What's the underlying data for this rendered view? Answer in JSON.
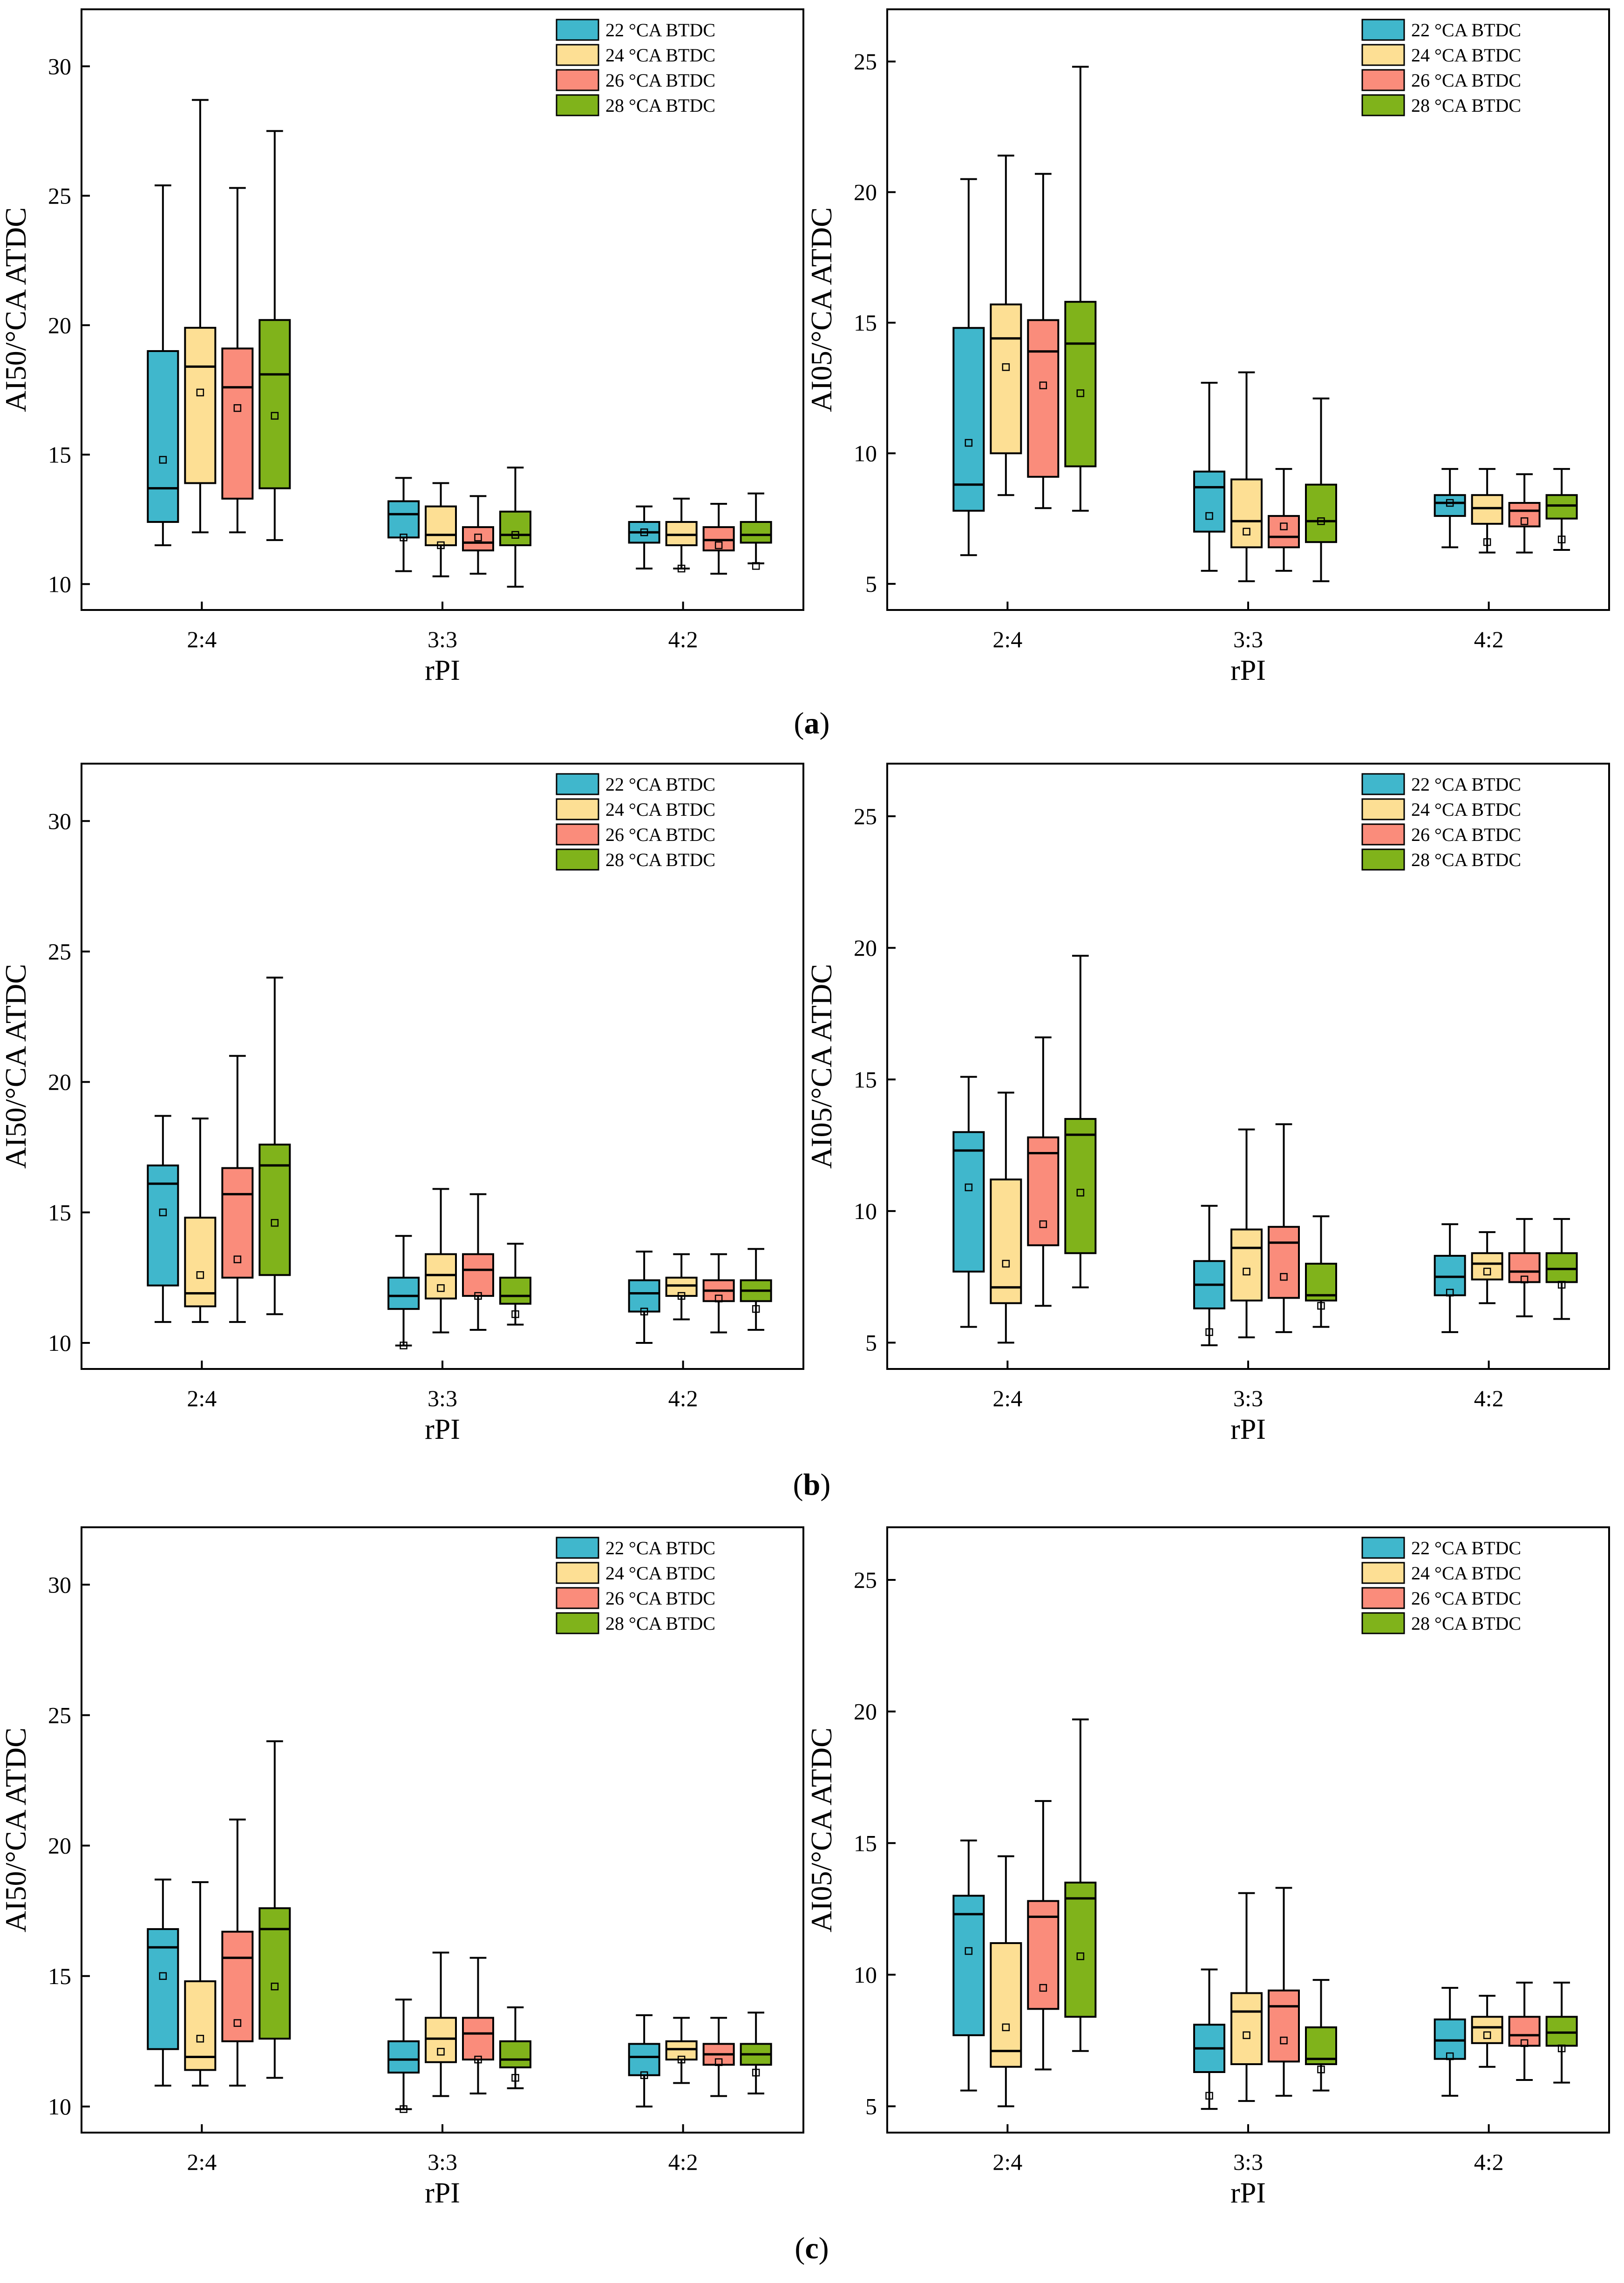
{
  "colors": {
    "22 °CA BTDC": "#40b7cc",
    "24 °CA BTDC": "#fddf94",
    "26 °CA BTDC": "#fa8c7b",
    "28 °CA BTDC": "#80b31b"
  },
  "captions": [
    "a",
    "b",
    "c"
  ],
  "chart_data": [
    {
      "type": "box",
      "panel": "a-left",
      "title": "",
      "xlabel": "rPI",
      "ylabel": "AI50/°CA ATDC",
      "categories": [
        "2:4",
        "3:3",
        "4:2"
      ],
      "ylim": [
        9,
        32.2
      ],
      "yticks": [
        10,
        15,
        20,
        25,
        30
      ],
      "legend_position": "top-right",
      "series": [
        {
          "name": "22 °CA BTDC",
          "boxes": [
            {
              "min": 11.5,
              "q1": 12.4,
              "median": 13.7,
              "q3": 19.0,
              "max": 25.4,
              "mean": 14.8
            },
            {
              "min": 10.5,
              "q1": 11.8,
              "median": 12.7,
              "q3": 13.2,
              "max": 14.1,
              "mean": 11.8
            },
            {
              "min": 10.6,
              "q1": 11.6,
              "median": 12.0,
              "q3": 12.4,
              "max": 13.0,
              "mean": 12.0
            }
          ]
        },
        {
          "name": "24 °CA BTDC",
          "boxes": [
            {
              "min": 12.0,
              "q1": 13.9,
              "median": 18.4,
              "q3": 19.9,
              "max": 28.7,
              "mean": 17.4
            },
            {
              "min": 10.3,
              "q1": 11.5,
              "median": 11.9,
              "q3": 13.0,
              "max": 13.9,
              "mean": 11.5
            },
            {
              "min": 10.6,
              "q1": 11.5,
              "median": 11.9,
              "q3": 12.4,
              "max": 13.3,
              "mean": 10.6
            }
          ]
        },
        {
          "name": "26 °CA BTDC",
          "boxes": [
            {
              "min": 12.0,
              "q1": 13.3,
              "median": 17.6,
              "q3": 19.1,
              "max": 25.3,
              "mean": 16.8
            },
            {
              "min": 10.4,
              "q1": 11.3,
              "median": 11.6,
              "q3": 12.2,
              "max": 13.4,
              "mean": 11.8
            },
            {
              "min": 10.4,
              "q1": 11.3,
              "median": 11.7,
              "q3": 12.2,
              "max": 13.1,
              "mean": 11.5
            }
          ]
        },
        {
          "name": "28 °CA BTDC",
          "boxes": [
            {
              "min": 11.7,
              "q1": 13.7,
              "median": 18.1,
              "q3": 20.2,
              "max": 27.5,
              "mean": 16.5
            },
            {
              "min": 9.9,
              "q1": 11.5,
              "median": 11.9,
              "q3": 12.8,
              "max": 14.5,
              "mean": 11.9
            },
            {
              "min": 10.8,
              "q1": 11.6,
              "median": 11.9,
              "q3": 12.4,
              "max": 13.5,
              "mean": 10.7
            }
          ]
        }
      ]
    },
    {
      "type": "box",
      "panel": "a-right",
      "title": "",
      "xlabel": "rPI",
      "ylabel": "AI05/°CA ATDC",
      "categories": [
        "2:4",
        "3:3",
        "4:2"
      ],
      "ylim": [
        4,
        27
      ],
      "yticks": [
        5,
        10,
        15,
        20,
        25
      ],
      "legend_position": "top-right",
      "series": [
        {
          "name": "22 °CA BTDC",
          "boxes": [
            {
              "min": 6.1,
              "q1": 7.8,
              "median": 8.8,
              "q3": 14.8,
              "max": 20.5,
              "mean": 10.4
            },
            {
              "min": 5.5,
              "q1": 7.0,
              "median": 8.7,
              "q3": 9.3,
              "max": 12.7,
              "mean": 7.6
            },
            {
              "min": 6.4,
              "q1": 7.6,
              "median": 8.1,
              "q3": 8.4,
              "max": 9.4,
              "mean": 8.1
            }
          ]
        },
        {
          "name": "24 °CA BTDC",
          "boxes": [
            {
              "min": 8.4,
              "q1": 10.0,
              "median": 14.4,
              "q3": 15.7,
              "max": 21.4,
              "mean": 13.3
            },
            {
              "min": 5.1,
              "q1": 6.4,
              "median": 7.4,
              "q3": 9.0,
              "max": 13.1,
              "mean": 7.0
            },
            {
              "min": 6.2,
              "q1": 7.3,
              "median": 7.9,
              "q3": 8.4,
              "max": 9.4,
              "mean": 6.6
            }
          ]
        },
        {
          "name": "26 °CA BTDC",
          "boxes": [
            {
              "min": 7.9,
              "q1": 9.1,
              "median": 13.9,
              "q3": 15.1,
              "max": 20.7,
              "mean": 12.6
            },
            {
              "min": 5.5,
              "q1": 6.4,
              "median": 6.8,
              "q3": 7.6,
              "max": 9.4,
              "mean": 7.2
            },
            {
              "min": 6.2,
              "q1": 7.2,
              "median": 7.8,
              "q3": 8.1,
              "max": 9.2,
              "mean": 7.4
            }
          ]
        },
        {
          "name": "28 °CA BTDC",
          "boxes": [
            {
              "min": 7.8,
              "q1": 9.5,
              "median": 14.2,
              "q3": 15.8,
              "max": 24.8,
              "mean": 12.3
            },
            {
              "min": 5.1,
              "q1": 6.6,
              "median": 7.4,
              "q3": 8.8,
              "max": 12.1,
              "mean": 7.4
            },
            {
              "min": 6.3,
              "q1": 7.5,
              "median": 8.0,
              "q3": 8.4,
              "max": 9.4,
              "mean": 6.7
            }
          ]
        }
      ]
    },
    {
      "type": "box",
      "panel": "b-left",
      "title": "",
      "xlabel": "rPI",
      "ylabel": "AI50/°CA ATDC",
      "categories": [
        "2:4",
        "3:3",
        "4:2"
      ],
      "ylim": [
        9,
        32.2
      ],
      "yticks": [
        10,
        15,
        20,
        25,
        30
      ],
      "legend_position": "top-right",
      "series": [
        {
          "name": "22 °CA BTDC",
          "boxes": [
            {
              "min": 10.8,
              "q1": 12.2,
              "median": 16.1,
              "q3": 16.8,
              "max": 18.7,
              "mean": 15.0
            },
            {
              "min": 9.9,
              "q1": 11.3,
              "median": 11.8,
              "q3": 12.5,
              "max": 14.1,
              "mean": 9.9
            },
            {
              "min": 10.0,
              "q1": 11.2,
              "median": 11.9,
              "q3": 12.4,
              "max": 13.5,
              "mean": 11.2
            }
          ]
        },
        {
          "name": "24 °CA BTDC",
          "boxes": [
            {
              "min": 10.8,
              "q1": 11.4,
              "median": 11.9,
              "q3": 14.8,
              "max": 18.6,
              "mean": 12.6
            },
            {
              "min": 10.4,
              "q1": 11.7,
              "median": 12.6,
              "q3": 13.4,
              "max": 15.9,
              "mean": 12.1
            },
            {
              "min": 10.9,
              "q1": 11.8,
              "median": 12.2,
              "q3": 12.5,
              "max": 13.4,
              "mean": 11.8
            }
          ]
        },
        {
          "name": "26 °CA BTDC",
          "boxes": [
            {
              "min": 10.8,
              "q1": 12.5,
              "median": 15.7,
              "q3": 16.7,
              "max": 21.0,
              "mean": 13.2
            },
            {
              "min": 10.5,
              "q1": 11.8,
              "median": 12.8,
              "q3": 13.4,
              "max": 15.7,
              "mean": 11.8
            },
            {
              "min": 10.4,
              "q1": 11.6,
              "median": 12.0,
              "q3": 12.4,
              "max": 13.4,
              "mean": 11.7
            }
          ]
        },
        {
          "name": "28 °CA BTDC",
          "boxes": [
            {
              "min": 11.1,
              "q1": 12.6,
              "median": 16.8,
              "q3": 17.6,
              "max": 24.0,
              "mean": 14.6
            },
            {
              "min": 10.7,
              "q1": 11.5,
              "median": 11.8,
              "q3": 12.5,
              "max": 13.8,
              "mean": 11.1
            },
            {
              "min": 10.5,
              "q1": 11.6,
              "median": 12.0,
              "q3": 12.4,
              "max": 13.6,
              "mean": 11.3
            }
          ]
        }
      ]
    },
    {
      "type": "box",
      "panel": "b-right",
      "title": "",
      "xlabel": "rPI",
      "ylabel": "AI05/°CA ATDC",
      "categories": [
        "2:4",
        "3:3",
        "4:2"
      ],
      "ylim": [
        4,
        27
      ],
      "yticks": [
        5,
        10,
        15,
        20,
        25
      ],
      "legend_position": "top-right",
      "series": [
        {
          "name": "22 °CA BTDC",
          "boxes": [
            {
              "min": 5.6,
              "q1": 7.7,
              "median": 12.3,
              "q3": 13.0,
              "max": 15.1,
              "mean": 10.9
            },
            {
              "min": 4.9,
              "q1": 6.3,
              "median": 7.2,
              "q3": 8.1,
              "max": 10.2,
              "mean": 5.4
            },
            {
              "min": 5.4,
              "q1": 6.8,
              "median": 7.5,
              "q3": 8.3,
              "max": 9.5,
              "mean": 6.9
            }
          ]
        },
        {
          "name": "24 °CA BTDC",
          "boxes": [
            {
              "min": 5.0,
              "q1": 6.5,
              "median": 7.1,
              "q3": 11.2,
              "max": 14.5,
              "mean": 8.0
            },
            {
              "min": 5.2,
              "q1": 6.6,
              "median": 8.6,
              "q3": 9.3,
              "max": 13.1,
              "mean": 7.7
            },
            {
              "min": 6.5,
              "q1": 7.4,
              "median": 8.0,
              "q3": 8.4,
              "max": 9.2,
              "mean": 7.7
            }
          ]
        },
        {
          "name": "26 °CA BTDC",
          "boxes": [
            {
              "min": 6.4,
              "q1": 8.7,
              "median": 12.2,
              "q3": 12.8,
              "max": 16.6,
              "mean": 9.5
            },
            {
              "min": 5.4,
              "q1": 6.7,
              "median": 8.8,
              "q3": 9.4,
              "max": 13.3,
              "mean": 7.5
            },
            {
              "min": 6.0,
              "q1": 7.3,
              "median": 7.7,
              "q3": 8.4,
              "max": 9.7,
              "mean": 7.4
            }
          ]
        },
        {
          "name": "28 °CA BTDC",
          "boxes": [
            {
              "min": 7.1,
              "q1": 8.4,
              "median": 12.9,
              "q3": 13.5,
              "max": 19.7,
              "mean": 10.7
            },
            {
              "min": 5.6,
              "q1": 6.6,
              "median": 6.8,
              "q3": 8.0,
              "max": 9.8,
              "mean": 6.4
            },
            {
              "min": 5.9,
              "q1": 7.3,
              "median": 7.8,
              "q3": 8.4,
              "max": 9.7,
              "mean": 7.2
            }
          ]
        }
      ]
    },
    {
      "type": "box",
      "panel": "c-left",
      "title": "",
      "xlabel": "rPI",
      "ylabel": "AI50/°CA ATDC",
      "categories": [
        "2:4",
        "3:3",
        "4:2"
      ],
      "ylim": [
        9,
        32.2
      ],
      "yticks": [
        10,
        15,
        20,
        25,
        30
      ],
      "legend_position": "top-right",
      "series": [
        {
          "name": "22 °CA BTDC",
          "boxes": [
            {
              "min": 10.8,
              "q1": 12.2,
              "median": 16.1,
              "q3": 16.8,
              "max": 18.7,
              "mean": 15.0
            },
            {
              "min": 9.9,
              "q1": 11.3,
              "median": 11.8,
              "q3": 12.5,
              "max": 14.1,
              "mean": 9.9
            },
            {
              "min": 10.0,
              "q1": 11.2,
              "median": 11.9,
              "q3": 12.4,
              "max": 13.5,
              "mean": 11.2
            }
          ]
        },
        {
          "name": "24 °CA BTDC",
          "boxes": [
            {
              "min": 10.8,
              "q1": 11.4,
              "median": 11.9,
              "q3": 14.8,
              "max": 18.6,
              "mean": 12.6
            },
            {
              "min": 10.4,
              "q1": 11.7,
              "median": 12.6,
              "q3": 13.4,
              "max": 15.9,
              "mean": 12.1
            },
            {
              "min": 10.9,
              "q1": 11.8,
              "median": 12.2,
              "q3": 12.5,
              "max": 13.4,
              "mean": 11.8
            }
          ]
        },
        {
          "name": "26 °CA BTDC",
          "boxes": [
            {
              "min": 10.8,
              "q1": 12.5,
              "median": 15.7,
              "q3": 16.7,
              "max": 21.0,
              "mean": 13.2
            },
            {
              "min": 10.5,
              "q1": 11.8,
              "median": 12.8,
              "q3": 13.4,
              "max": 15.7,
              "mean": 11.8
            },
            {
              "min": 10.4,
              "q1": 11.6,
              "median": 12.0,
              "q3": 12.4,
              "max": 13.4,
              "mean": 11.7
            }
          ]
        },
        {
          "name": "28 °CA BTDC",
          "boxes": [
            {
              "min": 11.1,
              "q1": 12.6,
              "median": 16.8,
              "q3": 17.6,
              "max": 24.0,
              "mean": 14.6
            },
            {
              "min": 10.7,
              "q1": 11.5,
              "median": 11.8,
              "q3": 12.5,
              "max": 13.8,
              "mean": 11.1
            },
            {
              "min": 10.5,
              "q1": 11.6,
              "median": 12.0,
              "q3": 12.4,
              "max": 13.6,
              "mean": 11.3
            }
          ]
        }
      ]
    },
    {
      "type": "box",
      "panel": "c-right",
      "title": "",
      "xlabel": "rPI",
      "ylabel": "AI05/°CA ATDC",
      "categories": [
        "2:4",
        "3:3",
        "4:2"
      ],
      "ylim": [
        4,
        27
      ],
      "yticks": [
        5,
        10,
        15,
        20,
        25
      ],
      "legend_position": "top-right",
      "series": [
        {
          "name": "22 °CA BTDC",
          "boxes": [
            {
              "min": 5.6,
              "q1": 7.7,
              "median": 12.3,
              "q3": 13.0,
              "max": 15.1,
              "mean": 10.9
            },
            {
              "min": 4.9,
              "q1": 6.3,
              "median": 7.2,
              "q3": 8.1,
              "max": 10.2,
              "mean": 5.4
            },
            {
              "min": 5.4,
              "q1": 6.8,
              "median": 7.5,
              "q3": 8.3,
              "max": 9.5,
              "mean": 6.9
            }
          ]
        },
        {
          "name": "24 °CA BTDC",
          "boxes": [
            {
              "min": 5.0,
              "q1": 6.5,
              "median": 7.1,
              "q3": 11.2,
              "max": 14.5,
              "mean": 8.0
            },
            {
              "min": 5.2,
              "q1": 6.6,
              "median": 8.6,
              "q3": 9.3,
              "max": 13.1,
              "mean": 7.7
            },
            {
              "min": 6.5,
              "q1": 7.4,
              "median": 8.0,
              "q3": 8.4,
              "max": 9.2,
              "mean": 7.7
            }
          ]
        },
        {
          "name": "26 °CA BTDC",
          "boxes": [
            {
              "min": 6.4,
              "q1": 8.7,
              "median": 12.2,
              "q3": 12.8,
              "max": 16.6,
              "mean": 9.5
            },
            {
              "min": 5.4,
              "q1": 6.7,
              "median": 8.8,
              "q3": 9.4,
              "max": 13.3,
              "mean": 7.5
            },
            {
              "min": 6.0,
              "q1": 7.3,
              "median": 7.7,
              "q3": 8.4,
              "max": 9.7,
              "mean": 7.4
            }
          ]
        },
        {
          "name": "28 °CA BTDC",
          "boxes": [
            {
              "min": 7.1,
              "q1": 8.4,
              "median": 12.9,
              "q3": 13.5,
              "max": 19.7,
              "mean": 10.7
            },
            {
              "min": 5.6,
              "q1": 6.6,
              "median": 6.8,
              "q3": 8.0,
              "max": 9.8,
              "mean": 6.4
            },
            {
              "min": 5.9,
              "q1": 7.3,
              "median": 7.8,
              "q3": 8.4,
              "max": 9.7,
              "mean": 7.2
            }
          ]
        }
      ]
    }
  ]
}
